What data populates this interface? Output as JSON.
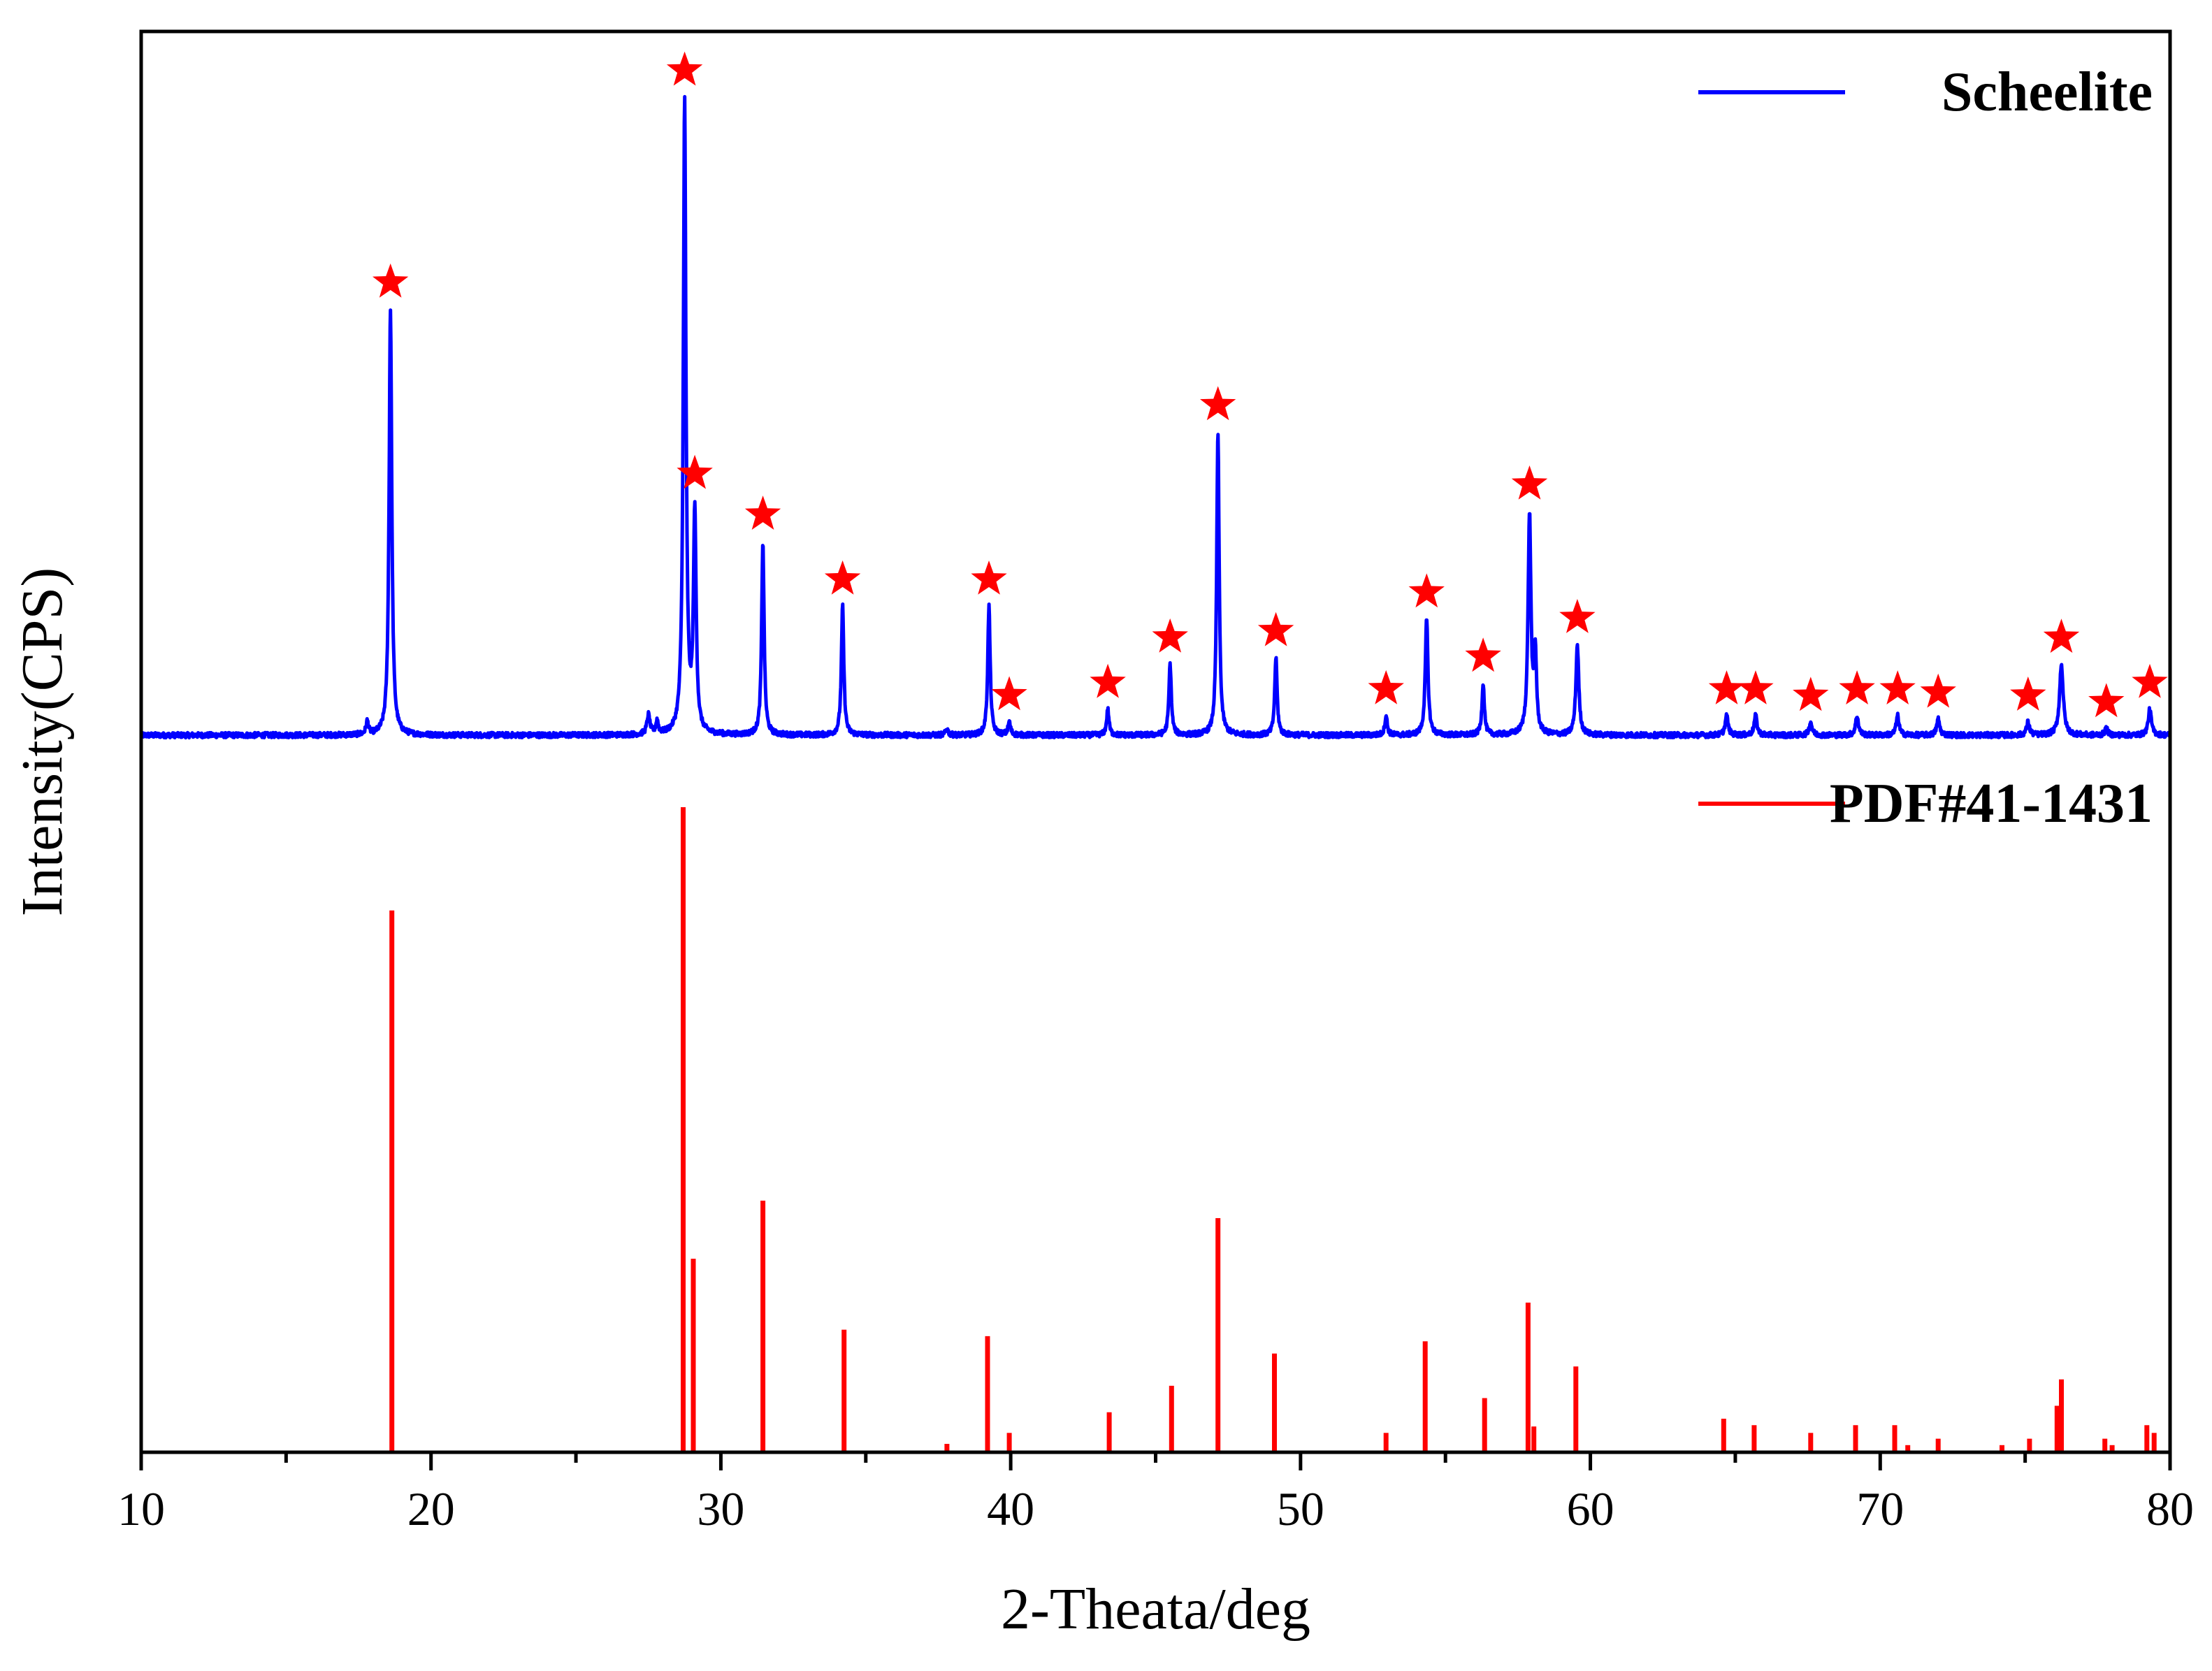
{
  "chart_data": {
    "type": "line",
    "title": "",
    "xlabel": "2-Theata/deg",
    "ylabel": "Intensity(CPS)",
    "xlim": [
      10,
      80
    ],
    "x_ticks": [
      10,
      20,
      30,
      40,
      50,
      60,
      70,
      80
    ],
    "x_tick_labels": [
      "10",
      "20",
      "30",
      "40",
      "50",
      "60",
      "70",
      "80"
    ],
    "y_ticks_shown": false,
    "grid": false,
    "legend_position": "top-right",
    "series": [
      {
        "name": "Scheelite",
        "kind": "profile",
        "color": "#0000ff",
        "baseline": 0.0,
        "y_range": [
          0,
          1.0
        ],
        "peaks": [
          {
            "x": 17.8,
            "h": 0.02,
            "w": 0.1
          },
          {
            "x": 18.6,
            "h": 0.66,
            "w": 0.11
          },
          {
            "x": 27.5,
            "h": 0.03,
            "w": 0.12
          },
          {
            "x": 27.8,
            "h": 0.02,
            "w": 0.1
          },
          {
            "x": 28.75,
            "h": 0.98,
            "w": 0.11
          },
          {
            "x": 29.1,
            "h": 0.34,
            "w": 0.11
          },
          {
            "x": 31.45,
            "h": 0.3,
            "w": 0.1
          },
          {
            "x": 34.2,
            "h": 0.2,
            "w": 0.1
          },
          {
            "x": 37.8,
            "h": 0.01,
            "w": 0.1
          },
          {
            "x": 39.25,
            "h": 0.2,
            "w": 0.1
          },
          {
            "x": 39.95,
            "h": 0.02,
            "w": 0.1
          },
          {
            "x": 43.35,
            "h": 0.04,
            "w": 0.1
          },
          {
            "x": 45.5,
            "h": 0.11,
            "w": 0.1
          },
          {
            "x": 47.15,
            "h": 0.47,
            "w": 0.1
          },
          {
            "x": 49.15,
            "h": 0.12,
            "w": 0.1
          },
          {
            "x": 52.95,
            "h": 0.03,
            "w": 0.1
          },
          {
            "x": 54.35,
            "h": 0.18,
            "w": 0.11
          },
          {
            "x": 56.3,
            "h": 0.08,
            "w": 0.1
          },
          {
            "x": 57.9,
            "h": 0.34,
            "w": 0.12
          },
          {
            "x": 58.1,
            "h": 0.12,
            "w": 0.1
          },
          {
            "x": 59.55,
            "h": 0.14,
            "w": 0.12
          },
          {
            "x": 64.7,
            "h": 0.03,
            "w": 0.12
          },
          {
            "x": 65.7,
            "h": 0.03,
            "w": 0.12
          },
          {
            "x": 67.6,
            "h": 0.02,
            "w": 0.12
          },
          {
            "x": 69.2,
            "h": 0.03,
            "w": 0.12
          },
          {
            "x": 70.6,
            "h": 0.03,
            "w": 0.12
          },
          {
            "x": 72.0,
            "h": 0.025,
            "w": 0.12
          },
          {
            "x": 75.1,
            "h": 0.02,
            "w": 0.12
          },
          {
            "x": 76.25,
            "h": 0.11,
            "w": 0.15
          },
          {
            "x": 77.8,
            "h": 0.01,
            "w": 0.12
          },
          {
            "x": 79.3,
            "h": 0.04,
            "w": 0.13
          }
        ]
      },
      {
        "name": "PDF#41-1431",
        "kind": "stick",
        "color": "#ff0000",
        "baseline": 0.0,
        "y_range": [
          0,
          1.0
        ],
        "sticks": [
          {
            "x": 18.65,
            "h": 0.84
          },
          {
            "x": 28.7,
            "h": 1.0
          },
          {
            "x": 29.05,
            "h": 0.3
          },
          {
            "x": 31.45,
            "h": 0.39
          },
          {
            "x": 34.25,
            "h": 0.19
          },
          {
            "x": 37.8,
            "h": 0.013
          },
          {
            "x": 39.2,
            "h": 0.18
          },
          {
            "x": 39.95,
            "h": 0.03
          },
          {
            "x": 43.4,
            "h": 0.062
          },
          {
            "x": 45.55,
            "h": 0.103
          },
          {
            "x": 47.15,
            "h": 0.363
          },
          {
            "x": 49.1,
            "h": 0.153
          },
          {
            "x": 52.95,
            "h": 0.03
          },
          {
            "x": 54.3,
            "h": 0.172
          },
          {
            "x": 56.35,
            "h": 0.084
          },
          {
            "x": 57.85,
            "h": 0.232
          },
          {
            "x": 58.05,
            "h": 0.04
          },
          {
            "x": 59.5,
            "h": 0.133
          },
          {
            "x": 64.6,
            "h": 0.052
          },
          {
            "x": 65.65,
            "h": 0.042
          },
          {
            "x": 67.6,
            "h": 0.03
          },
          {
            "x": 69.15,
            "h": 0.042
          },
          {
            "x": 70.5,
            "h": 0.042
          },
          {
            "x": 70.95,
            "h": 0.011
          },
          {
            "x": 72.0,
            "h": 0.021
          },
          {
            "x": 74.2,
            "h": 0.011
          },
          {
            "x": 75.15,
            "h": 0.021
          },
          {
            "x": 76.1,
            "h": 0.072
          },
          {
            "x": 76.25,
            "h": 0.113
          },
          {
            "x": 77.75,
            "h": 0.021
          },
          {
            "x": 78.0,
            "h": 0.011
          },
          {
            "x": 79.2,
            "h": 0.042
          },
          {
            "x": 79.45,
            "h": 0.03
          }
        ]
      }
    ],
    "annotations": {
      "marker": "star",
      "marker_color": "#ff0000",
      "description": "Red star markers placed atop each Scheelite diffraction peak",
      "positions_x": [
        18.6,
        28.75,
        29.1,
        31.45,
        34.2,
        39.25,
        39.95,
        43.35,
        45.5,
        47.15,
        49.15,
        52.95,
        54.35,
        56.3,
        57.9,
        59.55,
        64.7,
        65.7,
        67.6,
        69.2,
        70.6,
        72.0,
        75.1,
        76.25,
        77.8,
        79.3
      ]
    }
  }
}
